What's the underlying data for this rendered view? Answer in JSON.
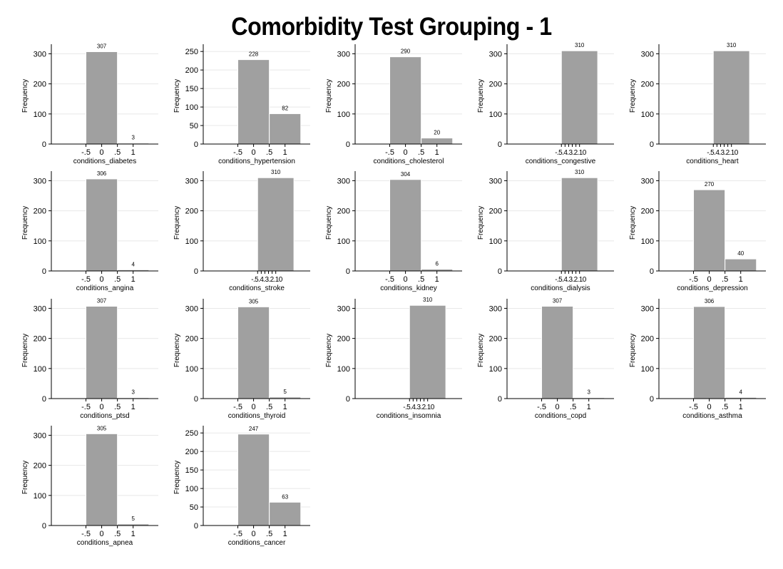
{
  "page": {
    "title": "Comorbidity Test Grouping - 1"
  },
  "style": {
    "bar_fill": "#a0a0a0",
    "bar_stroke": "#ffffff",
    "axis_color": "#000000",
    "grid_color": "#e8e8e8"
  },
  "chart_data": [
    {
      "type": "bar",
      "xlabel": "conditions_diabetes",
      "ylabel": "Frequency",
      "bins": [
        [
          -0.5,
          0.5,
          307
        ],
        [
          0.5,
          1.5,
          3
        ]
      ],
      "xticks": [
        "-.5",
        "0",
        ".5",
        "1"
      ],
      "yticks": [
        0,
        100,
        200,
        300
      ],
      "ylim": [
        0,
        320
      ]
    },
    {
      "type": "bar",
      "xlabel": "conditions_hypertension",
      "ylabel": "Frequency",
      "bins": [
        [
          -0.5,
          0.5,
          228
        ],
        [
          0.5,
          1.5,
          82
        ]
      ],
      "xticks": [
        "-.5",
        "0",
        ".5",
        "1"
      ],
      "yticks": [
        0,
        50,
        100,
        150,
        200,
        250
      ],
      "ylim": [
        0,
        260
      ]
    },
    {
      "type": "bar",
      "xlabel": "conditions_cholesterol",
      "ylabel": "Frequency",
      "bins": [
        [
          -0.5,
          0.5,
          290
        ],
        [
          0.5,
          1.5,
          20
        ]
      ],
      "xticks": [
        "-.5",
        "0",
        ".5",
        "1"
      ],
      "yticks": [
        0,
        100,
        200,
        300
      ],
      "ylim": [
        0,
        320
      ]
    },
    {
      "type": "bar",
      "xlabel": "conditions_congestive",
      "ylabel": "Frequency",
      "bins": [
        [
          -0.5,
          0.5,
          310
        ]
      ],
      "xticks": [
        "-.5",
        "-.4",
        "-.3",
        "-.2",
        "-.1",
        "0"
      ],
      "xtick_text": "-.5.4.3.2.10",
      "yticks": [
        0,
        100,
        200,
        300
      ],
      "ylim": [
        0,
        320
      ]
    },
    {
      "type": "bar",
      "xlabel": "conditions_heart",
      "ylabel": "Frequency",
      "bins": [
        [
          -0.5,
          0.5,
          310
        ]
      ],
      "xticks": [
        "-.5",
        "-.4",
        "-.3",
        "-.2",
        "-.1",
        "0"
      ],
      "xtick_text": "-.5.4.3.2.10",
      "yticks": [
        0,
        100,
        200,
        300
      ],
      "ylim": [
        0,
        320
      ]
    },
    {
      "type": "bar",
      "xlabel": "conditions_angina",
      "ylabel": "Frequency",
      "bins": [
        [
          -0.5,
          0.5,
          306
        ],
        [
          0.5,
          1.5,
          4
        ]
      ],
      "xticks": [
        "-.5",
        "0",
        ".5",
        "1"
      ],
      "yticks": [
        0,
        100,
        200,
        300
      ],
      "ylim": [
        0,
        320
      ]
    },
    {
      "type": "bar",
      "xlabel": "conditions_stroke",
      "ylabel": "Frequency",
      "bins": [
        [
          -0.5,
          0.5,
          310
        ]
      ],
      "xticks": [
        "-.5",
        "-.4",
        "-.3",
        "-.2",
        "-.1",
        "0"
      ],
      "xtick_text": "-.5.4.3.2.10",
      "yticks": [
        0,
        100,
        200,
        300
      ],
      "ylim": [
        0,
        320
      ]
    },
    {
      "type": "bar",
      "xlabel": "conditions_kidney",
      "ylabel": "Frequency",
      "bins": [
        [
          -0.5,
          0.5,
          304
        ],
        [
          0.5,
          1.5,
          6
        ]
      ],
      "xticks": [
        "-.5",
        "0",
        ".5",
        "1"
      ],
      "yticks": [
        0,
        100,
        200,
        300
      ],
      "ylim": [
        0,
        320
      ]
    },
    {
      "type": "bar",
      "xlabel": "conditions_dialysis",
      "ylabel": "Frequency",
      "bins": [
        [
          -0.5,
          0.5,
          310
        ]
      ],
      "xticks": [
        "-.5",
        "-.4",
        "-.3",
        "-.2",
        "-.1",
        "0"
      ],
      "xtick_text": "-.5.4.3.2.10",
      "yticks": [
        0,
        100,
        200,
        300
      ],
      "ylim": [
        0,
        320
      ]
    },
    {
      "type": "bar",
      "xlabel": "conditions_depression",
      "ylabel": "Frequency",
      "bins": [
        [
          -0.5,
          0.5,
          270
        ],
        [
          0.5,
          1.5,
          40
        ]
      ],
      "xticks": [
        "-.5",
        "0",
        ".5",
        "1"
      ],
      "yticks": [
        0,
        100,
        200,
        300
      ],
      "ylim": [
        0,
        320
      ]
    },
    {
      "type": "bar",
      "xlabel": "conditions_ptsd",
      "ylabel": "Frequency",
      "bins": [
        [
          -0.5,
          0.5,
          307
        ],
        [
          0.5,
          1.5,
          3
        ]
      ],
      "xticks": [
        "-.5",
        "0",
        ".5",
        "1"
      ],
      "yticks": [
        0,
        100,
        200,
        300
      ],
      "ylim": [
        0,
        320
      ]
    },
    {
      "type": "bar",
      "xlabel": "conditions_thyroid",
      "ylabel": "Frequency",
      "bins": [
        [
          -0.5,
          0.5,
          305
        ],
        [
          0.5,
          1.5,
          5
        ]
      ],
      "xticks": [
        "-.5",
        "0",
        ".5",
        "1"
      ],
      "yticks": [
        0,
        100,
        200,
        300
      ],
      "ylim": [
        0,
        320
      ]
    },
    {
      "type": "bar",
      "xlabel": "conditions_insomnia",
      "ylabel": "Frequency",
      "bins": [
        [
          -0.5,
          0.5,
          310
        ]
      ],
      "xticks": [
        "-.5",
        "-.4",
        "-.3",
        "-.2",
        "-.1",
        "0"
      ],
      "xtick_text": "-.5.4.3.2.10",
      "yticks": [
        0,
        100,
        200,
        300
      ],
      "ylim": [
        0,
        320
      ]
    },
    {
      "type": "bar",
      "xlabel": "conditions_copd",
      "ylabel": "Frequency",
      "bins": [
        [
          -0.5,
          0.5,
          307
        ],
        [
          0.5,
          1.5,
          3
        ]
      ],
      "xticks": [
        "-.5",
        "0",
        ".5",
        "1"
      ],
      "yticks": [
        0,
        100,
        200,
        300
      ],
      "ylim": [
        0,
        320
      ]
    },
    {
      "type": "bar",
      "xlabel": "conditions_asthma",
      "ylabel": "Frequency",
      "bins": [
        [
          -0.5,
          0.5,
          306
        ],
        [
          0.5,
          1.5,
          4
        ]
      ],
      "xticks": [
        "-.5",
        "0",
        ".5",
        "1"
      ],
      "yticks": [
        0,
        100,
        200,
        300
      ],
      "ylim": [
        0,
        320
      ]
    },
    {
      "type": "bar",
      "xlabel": "conditions_apnea",
      "ylabel": "Frequency",
      "bins": [
        [
          -0.5,
          0.5,
          305
        ],
        [
          0.5,
          1.5,
          5
        ]
      ],
      "xticks": [
        "-.5",
        "0",
        ".5",
        "1"
      ],
      "yticks": [
        0,
        100,
        200,
        300
      ],
      "ylim": [
        0,
        320
      ]
    },
    {
      "type": "bar",
      "xlabel": "conditions_cancer",
      "ylabel": "Frequency",
      "bins": [
        [
          -0.5,
          0.5,
          247
        ],
        [
          0.5,
          1.5,
          63
        ]
      ],
      "xticks": [
        "-.5",
        "0",
        ".5",
        "1"
      ],
      "yticks": [
        0,
        50,
        100,
        150,
        200,
        250
      ],
      "ylim": [
        0,
        260
      ]
    }
  ]
}
